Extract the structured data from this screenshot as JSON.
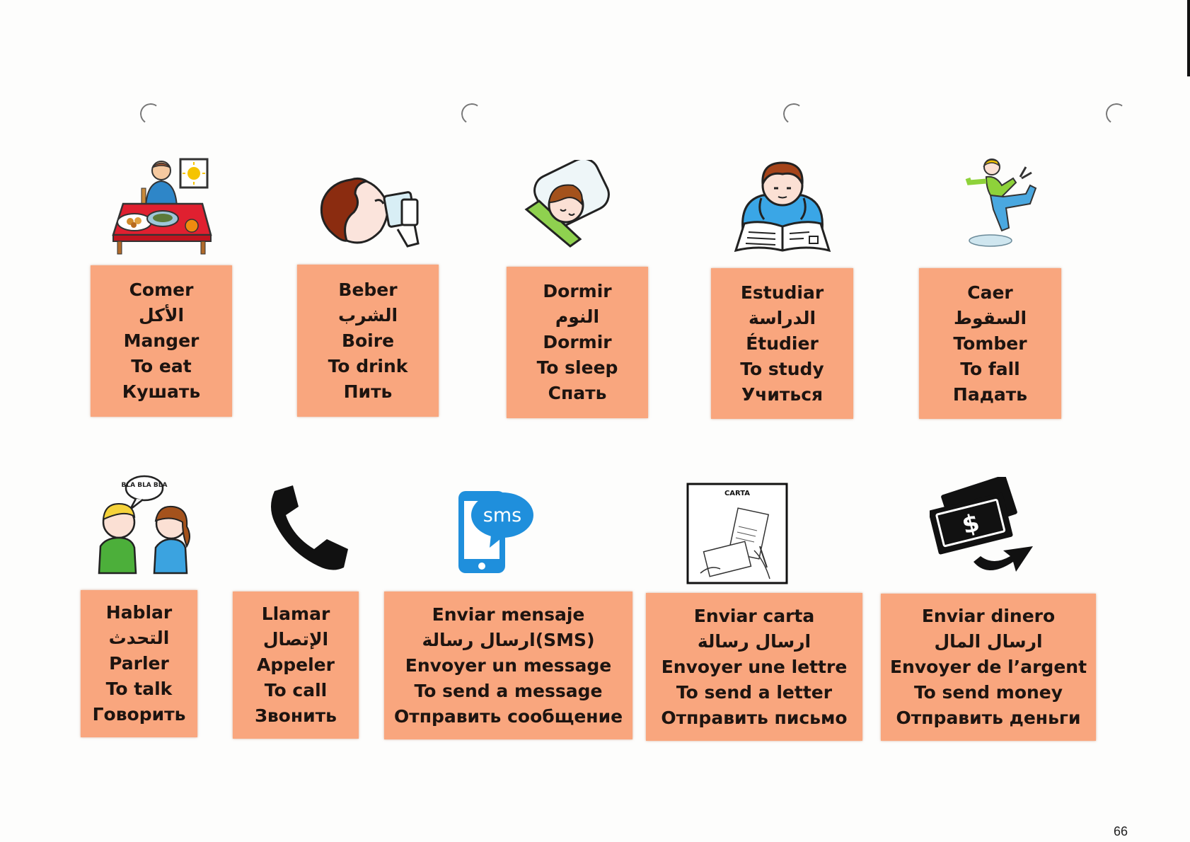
{
  "cards": [
    {
      "icon": "eating-at-table-icon",
      "lines": [
        "Comer",
        "الأكل",
        "Manger",
        "To eat",
        "Кушать"
      ]
    },
    {
      "icon": "drinking-icon",
      "lines": [
        "Beber",
        "الشرب",
        "Boire",
        "To drink",
        "Пить"
      ]
    },
    {
      "icon": "sleeping-icon",
      "lines": [
        "Dormir",
        "النوم",
        "Dormir",
        "To sleep",
        "Спать"
      ]
    },
    {
      "icon": "studying-book-icon",
      "lines": [
        "Estudiar",
        "الدراسة",
        "Étudier",
        "To study",
        "Учиться"
      ]
    },
    {
      "icon": "falling-icon",
      "lines": [
        "Caer",
        "السقوط",
        "Tomber",
        "To fall",
        "Падать"
      ]
    },
    {
      "icon": "talking-people-icon",
      "bubble": "BLA BLA BLA",
      "lines": [
        "Hablar",
        "التحدث",
        "Parler",
        "To talk",
        "Говорить"
      ]
    },
    {
      "icon": "phone-handset-icon",
      "lines": [
        "Llamar",
        "الإتصال",
        "Appeler",
        "To call",
        "Звонить"
      ]
    },
    {
      "icon": "sms-phone-icon",
      "badge": "sms",
      "lines": [
        "Enviar mensaje",
        "ارسال رسالة(SMS)",
        "Envoyer un message",
        "To send a message",
        "Отправить сообщение"
      ]
    },
    {
      "icon": "letter-icon",
      "caption": "CARTA",
      "lines": [
        "Enviar carta",
        "ارسال رسالة",
        "Envoyer une lettre",
        "To send a letter",
        "Отправить письмо"
      ]
    },
    {
      "icon": "send-money-icon",
      "symbol": "$",
      "lines": [
        "Enviar dinero",
        "ارسال المال",
        "Envoyer de l’argent",
        "To send money",
        "Отправить деньги"
      ]
    }
  ],
  "page_number": "66"
}
